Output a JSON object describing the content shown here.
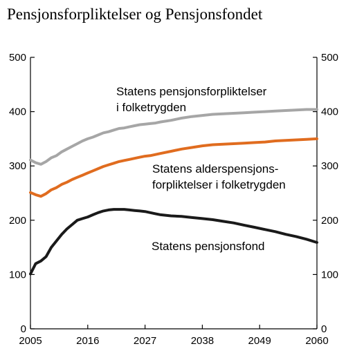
{
  "chart_data": {
    "type": "line",
    "title": "Pensjonsforpliktelser og Pensjonsfondet",
    "xlabel": "",
    "ylabel": "",
    "xlim": [
      2005,
      2060
    ],
    "ylim": [
      0,
      500
    ],
    "x_ticks": [
      2005,
      2016,
      2027,
      2038,
      2049,
      2060
    ],
    "y_ticks": [
      0,
      100,
      200,
      300,
      400,
      500
    ],
    "grid": false,
    "legend": "none",
    "series": [
      {
        "name": "Statens pensjonsforpliktelser i folketrygden",
        "label_lines": [
          "Statens pensjonsforpliktelser",
          "i folketrygden"
        ],
        "color": "#a6a6a6",
        "x": [
          2005,
          2006,
          2007,
          2008,
          2009,
          2010,
          2011,
          2012,
          2013,
          2014,
          2015,
          2016,
          2017,
          2018,
          2019,
          2020,
          2021,
          2022,
          2023,
          2024,
          2025,
          2026,
          2027,
          2028,
          2029,
          2030,
          2032,
          2034,
          2036,
          2038,
          2040,
          2042,
          2044,
          2046,
          2048,
          2050,
          2052,
          2054,
          2056,
          2058,
          2060
        ],
        "values": [
          311,
          306,
          303,
          308,
          315,
          319,
          326,
          331,
          336,
          341,
          346,
          350,
          353,
          357,
          361,
          363,
          366,
          369,
          370,
          372,
          374,
          376,
          377,
          378,
          379,
          381,
          384,
          388,
          391,
          393,
          395,
          396,
          397,
          398,
          399,
          400,
          401,
          402,
          403,
          404,
          404
        ]
      },
      {
        "name": "Statens alderspensjonsforpliktelser i folketrygden",
        "label_lines": [
          "Statens alderspensjons-",
          "forpliktelser i folketrygden"
        ],
        "color": "#e06c1f",
        "x": [
          2005,
          2006,
          2007,
          2008,
          2009,
          2010,
          2011,
          2012,
          2013,
          2014,
          2015,
          2016,
          2017,
          2018,
          2019,
          2020,
          2021,
          2022,
          2023,
          2024,
          2025,
          2026,
          2027,
          2028,
          2029,
          2030,
          2032,
          2034,
          2036,
          2038,
          2040,
          2042,
          2044,
          2046,
          2048,
          2050,
          2052,
          2054,
          2056,
          2058,
          2060
        ],
        "values": [
          251,
          247,
          244,
          249,
          256,
          260,
          266,
          270,
          275,
          279,
          283,
          287,
          291,
          295,
          299,
          302,
          305,
          308,
          310,
          312,
          314,
          316,
          318,
          319,
          321,
          323,
          327,
          331,
          334,
          337,
          339,
          340,
          341,
          342,
          343,
          344,
          346,
          347,
          348,
          349,
          350
        ]
      },
      {
        "name": "Statens pensjonsfond",
        "label_lines": [
          "Statens pensjonsfond"
        ],
        "color": "#1a1a1a",
        "x": [
          2005,
          2006,
          2007,
          2008,
          2009,
          2010,
          2011,
          2012,
          2013,
          2014,
          2015,
          2016,
          2017,
          2018,
          2019,
          2020,
          2021,
          2022,
          2023,
          2024,
          2025,
          2026,
          2027,
          2028,
          2029,
          2030,
          2032,
          2034,
          2036,
          2038,
          2040,
          2042,
          2044,
          2046,
          2048,
          2050,
          2052,
          2054,
          2056,
          2058,
          2060
        ],
        "values": [
          101,
          120,
          125,
          133,
          150,
          162,
          174,
          184,
          192,
          200,
          203,
          206,
          210,
          214,
          217,
          219,
          220,
          220,
          220,
          219,
          218,
          217,
          216,
          214,
          212,
          210,
          208,
          207,
          205,
          203,
          201,
          198,
          195,
          191,
          187,
          183,
          179,
          174,
          170,
          165,
          159
        ]
      }
    ]
  }
}
